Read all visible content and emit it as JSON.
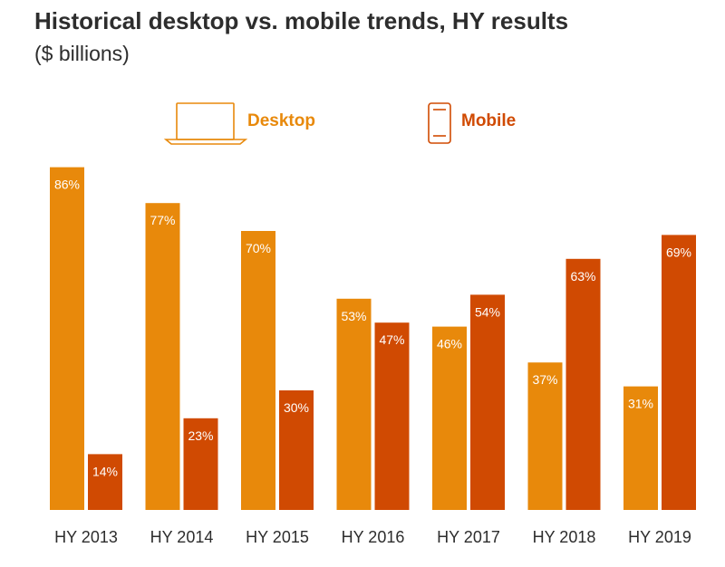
{
  "colors": {
    "desktop": "#E8890B",
    "mobile": "#D04A02",
    "text": "#2D2D2D"
  },
  "legend": {
    "desktop_icon": "laptop-icon",
    "mobile_icon": "smartphone-icon",
    "placement": "top-center"
  },
  "chart_data": {
    "type": "bar",
    "title": "Historical desktop vs. mobile trends, HY results",
    "subtitle": "($ billions)",
    "categories": [
      "HY 2013",
      "HY 2014",
      "HY 2015",
      "HY 2016",
      "HY 2017",
      "HY 2018",
      "HY 2019"
    ],
    "series": [
      {
        "name": "Desktop",
        "values": [
          86,
          77,
          70,
          53,
          46,
          37,
          31
        ],
        "labels": [
          "86%",
          "77%",
          "70%",
          "53%",
          "46%",
          "37%",
          "31%"
        ]
      },
      {
        "name": "Mobile",
        "values": [
          14,
          23,
          30,
          47,
          54,
          63,
          69
        ],
        "labels": [
          "14%",
          "23%",
          "30%",
          "47%",
          "54%",
          "63%",
          "69%"
        ]
      }
    ],
    "ylim": [
      0,
      100
    ],
    "grid": false,
    "y_axis_visible": false
  }
}
